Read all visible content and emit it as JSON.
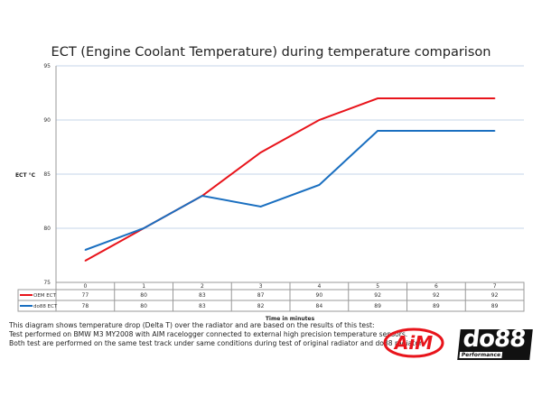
{
  "chart_data": {
    "type": "line",
    "title": "ECT (Engine Coolant Temperature) during temperature comparison",
    "xlabel": "Time in minutes",
    "ylabel": "ECT °C",
    "categories": [
      "0",
      "1",
      "2",
      "3",
      "4",
      "5",
      "6",
      "7"
    ],
    "ylim": [
      75,
      95
    ],
    "yticks": [
      75,
      80,
      85,
      90,
      95
    ],
    "grid": true,
    "legend": "data-table",
    "series": [
      {
        "name": "OEM ECT",
        "color": "#e8141b",
        "values": [
          77,
          80,
          83,
          87,
          90,
          92,
          92,
          92
        ]
      },
      {
        "name": "do88 ECT",
        "color": "#1a6fc0",
        "values": [
          78,
          80,
          83,
          82,
          84,
          89,
          89,
          89
        ]
      }
    ]
  },
  "notes": [
    "This diagram shows temperature drop (Delta T) over the radiator and are based on the results of this test:",
    "Test performed on BMW M3 MY2008 with AIM racelogger connected to external high precision temperature sensors.",
    "Both test are performed on the same test track under same conditions during test of original radiator and do88 radiator."
  ],
  "logos": {
    "aim": "AiM",
    "do88": "do88",
    "do88_sub": "Performance"
  }
}
